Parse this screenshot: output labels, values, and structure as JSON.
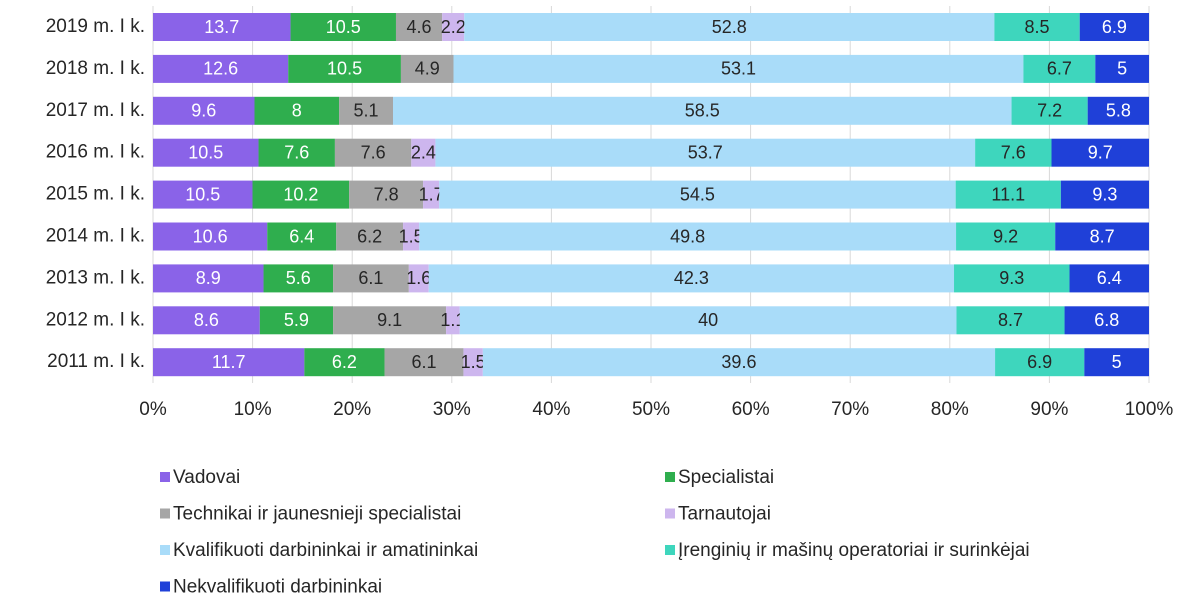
{
  "chart_data": {
    "type": "stacked_bar_100",
    "orientation": "horizontal",
    "categories": [
      "2019 m. I k.",
      "2018 m. I k.",
      "2017 m. I k.",
      "2016 m. I k.",
      "2015 m. I k.",
      "2014 m. I k.",
      "2013 m. I k.",
      "2012 m. I k.",
      "2011 m. I k."
    ],
    "series": [
      {
        "name": "Vadovai",
        "color": "#8a63e8",
        "values": [
          13.7,
          12.6,
          9.6,
          10.5,
          10.5,
          10.6,
          8.9,
          8.6,
          11.7
        ]
      },
      {
        "name": "Specialistai",
        "color": "#2fae4e",
        "values": [
          10.5,
          10.5,
          8,
          7.6,
          10.2,
          6.4,
          5.6,
          5.9,
          6.2
        ]
      },
      {
        "name": "Technikai ir jaunesnieji specialistai",
        "color": "#a6a6a6",
        "values": [
          4.6,
          4.9,
          5.1,
          7.6,
          7.8,
          6.2,
          6.1,
          9.1,
          6.1
        ]
      },
      {
        "name": "Tarnautojai",
        "color": "#cdb6ee",
        "values": [
          2.2,
          null,
          null,
          2.4,
          1.7,
          1.5,
          1.6,
          1.1,
          1.5
        ]
      },
      {
        "name": "Kvalifikuoti darbininkai ir amatininkai",
        "color": "#a9dcf9",
        "values": [
          52.8,
          53.1,
          58.5,
          53.7,
          54.5,
          49.8,
          42.3,
          40,
          39.6
        ]
      },
      {
        "name": "Įrenginių ir mašinų operatoriai ir surinkėjai",
        "color": "#3ed6bd",
        "values": [
          8.5,
          6.7,
          7.2,
          7.6,
          11.1,
          9.2,
          9.3,
          8.7,
          6.9
        ]
      },
      {
        "name": "Nekvalifikuoti darbininkai",
        "color": "#1f40d8",
        "values": [
          6.9,
          5,
          5.8,
          9.7,
          9.3,
          8.7,
          6.4,
          6.8,
          5
        ]
      }
    ],
    "xlim": [
      0,
      100
    ],
    "xticks": [
      {
        "value": 0,
        "label": "0%"
      },
      {
        "value": 10,
        "label": "10%"
      },
      {
        "value": 20,
        "label": "20%"
      },
      {
        "value": 30,
        "label": "30%"
      },
      {
        "value": 40,
        "label": "40%"
      },
      {
        "value": 50,
        "label": "50%"
      },
      {
        "value": 60,
        "label": "60%"
      },
      {
        "value": 70,
        "label": "70%"
      },
      {
        "value": 80,
        "label": "80%"
      },
      {
        "value": 90,
        "label": "90%"
      },
      {
        "value": 100,
        "label": "100%"
      }
    ],
    "grid": true,
    "legend": "bottom"
  }
}
